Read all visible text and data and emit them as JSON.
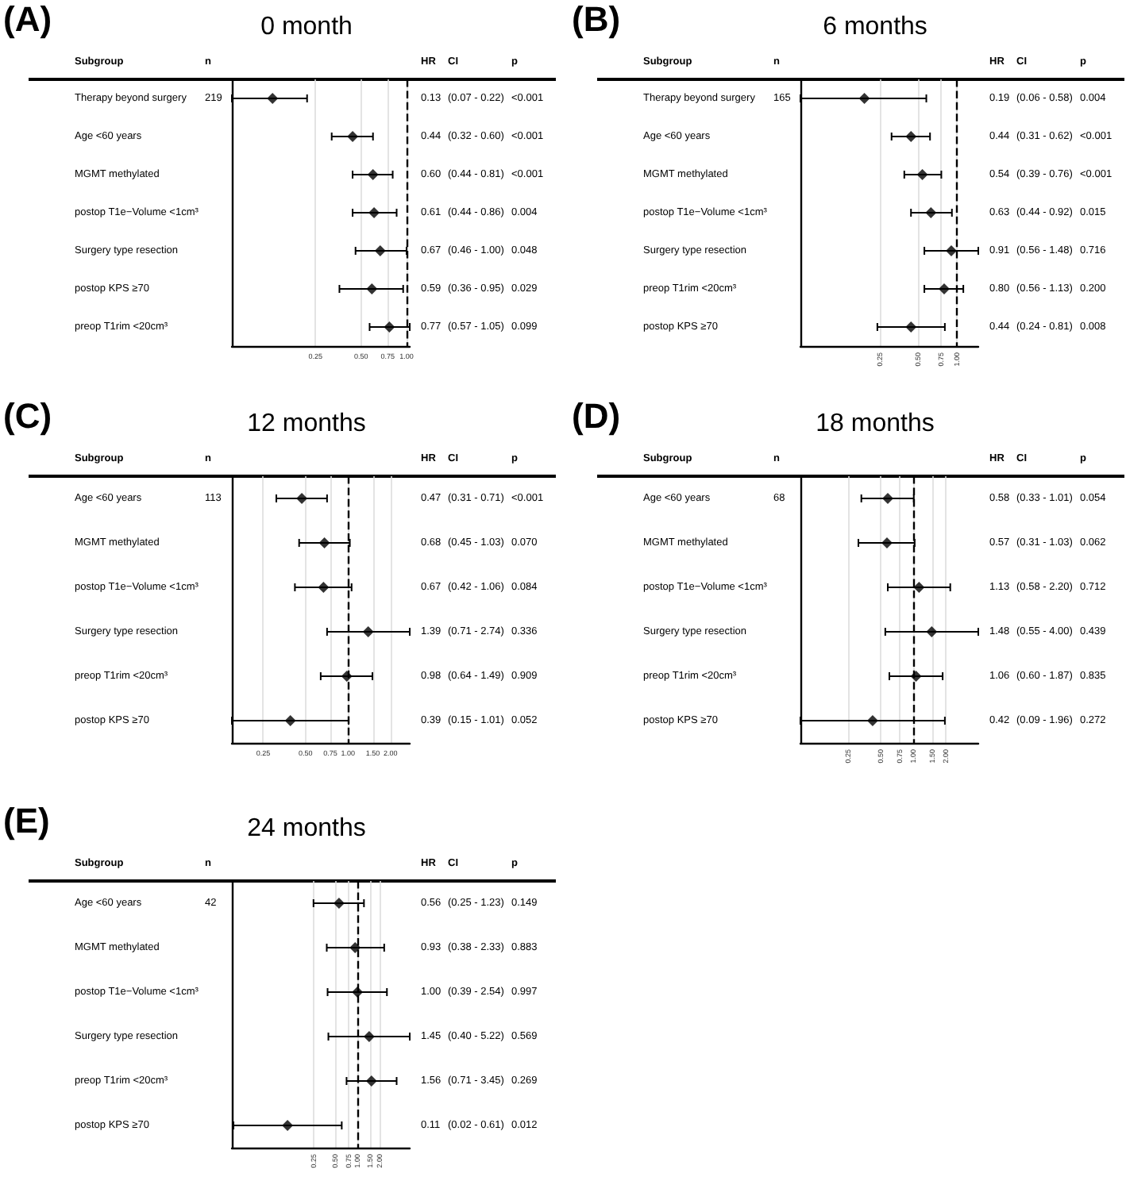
{
  "chart_data": [
    {
      "type": "scatter",
      "orientation": "horizontal",
      "title": "0 month",
      "color": "#000000",
      "marker": "diamond",
      "log": "x",
      "grid": "x",
      "categories": [
        "Therapy beyond surgery",
        "Age <60 years",
        "MGMT methylated",
        "postop T1e−Volume <1cm³",
        "Surgery type resection",
        "postop KPS ≥70",
        "preop T1rim <20cm³"
      ],
      "values": [
        0.13,
        0.44,
        0.6,
        0.61,
        0.67,
        0.59,
        0.77
      ],
      "errors": [
        [
          0.07,
          0.22
        ],
        [
          0.32,
          0.6
        ],
        [
          0.44,
          0.81
        ],
        [
          0.44,
          0.86
        ],
        [
          0.46,
          1.0
        ],
        [
          0.36,
          0.95
        ],
        [
          0.57,
          1.05
        ]
      ],
      "value_labels": [
        "0.13",
        "0.44",
        "0.60",
        "0.61",
        "0.67",
        "0.59",
        "0.77"
      ],
      "xlim": [
        0.07,
        1.05
      ],
      "xticks": [
        {
          "value": 0.25,
          "label": "0.25"
        },
        {
          "value": 0.5,
          "label": "0.50"
        },
        {
          "value": 0.75,
          "label": "0.75"
        },
        {
          "value": 1,
          "label": "1.00"
        }
      ],
      "ref_lines": [
        {
          "axis": "x",
          "value": 1,
          "line_style": "dashed",
          "color": "#000000"
        }
      ],
      "annotations": [
        "(A)",
        "Subgroup",
        "n",
        "HR",
        "CI",
        "p",
        "219",
        "(0.07 - 0.22)",
        "(0.32 - 0.60)",
        "(0.44 - 0.81)",
        "(0.44 - 0.86)",
        "(0.46 - 1.00)",
        "(0.36 - 0.95)",
        "(0.57 - 1.05)",
        "<0.001",
        "<0.001",
        "<0.001",
        "0.004",
        "0.048",
        "0.029",
        "0.099"
      ]
    },
    {
      "type": "scatter",
      "orientation": "horizontal",
      "title": "6 months",
      "color": "#000000",
      "marker": "diamond",
      "log": "x",
      "grid": "x",
      "categories": [
        "Therapy beyond surgery",
        "Age <60 years",
        "MGMT methylated",
        "postop T1e−Volume <1cm³",
        "Surgery type resection",
        "preop T1rim <20cm³",
        "postop KPS ≥70"
      ],
      "values": [
        0.19,
        0.44,
        0.54,
        0.63,
        0.91,
        0.8,
        0.44
      ],
      "errors": [
        [
          0.06,
          0.58
        ],
        [
          0.31,
          0.62
        ],
        [
          0.39,
          0.76
        ],
        [
          0.44,
          0.92
        ],
        [
          0.56,
          1.48
        ],
        [
          0.56,
          1.13
        ],
        [
          0.24,
          0.81
        ]
      ],
      "value_labels": [
        "0.19",
        "0.44",
        "0.54",
        "0.63",
        "0.91",
        "0.80",
        "0.44"
      ],
      "xlim": [
        0.06,
        1.48
      ],
      "xticks": [
        {
          "value": 0.25,
          "label": "0.25"
        },
        {
          "value": 0.5,
          "label": "0.50"
        },
        {
          "value": 0.75,
          "label": "0.75"
        },
        {
          "value": 1,
          "label": "1.00"
        }
      ],
      "ref_lines": [
        {
          "axis": "x",
          "value": 1,
          "line_style": "dashed",
          "color": "#000000"
        }
      ],
      "annotations": [
        "(B)",
        "Subgroup",
        "n",
        "HR",
        "CI",
        "p",
        "165",
        "(0.06 - 0.58)",
        "(0.31 - 0.62)",
        "(0.39 - 0.76)",
        "(0.44 - 0.92)",
        "(0.56 - 1.48)",
        "(0.56 - 1.13)",
        "(0.24 - 0.81)",
        "0.004",
        "<0.001",
        "<0.001",
        "0.015",
        "0.716",
        "0.200",
        "0.008"
      ]
    },
    {
      "type": "scatter",
      "orientation": "horizontal",
      "title": "12 months",
      "color": "#000000",
      "marker": "diamond",
      "log": "x",
      "grid": "x",
      "categories": [
        "Age <60 years",
        "MGMT methylated",
        "postop T1e−Volume <1cm³",
        "Surgery type resection",
        "preop T1rim <20cm³",
        "postop KPS ≥70"
      ],
      "values": [
        0.47,
        0.68,
        0.67,
        1.39,
        0.98,
        0.39
      ],
      "errors": [
        [
          0.31,
          0.71
        ],
        [
          0.45,
          1.03
        ],
        [
          0.42,
          1.06
        ],
        [
          0.71,
          2.74
        ],
        [
          0.64,
          1.49
        ],
        [
          0.15,
          1.01
        ]
      ],
      "value_labels": [
        "0.47",
        "0.68",
        "0.67",
        "1.39",
        "0.98",
        "0.39"
      ],
      "xlim": [
        0.15,
        2.74
      ],
      "xticks": [
        {
          "value": 0.25,
          "label": "0.25"
        },
        {
          "value": 0.5,
          "label": "0.50"
        },
        {
          "value": 0.75,
          "label": "0.75"
        },
        {
          "value": 1,
          "label": "1.00"
        },
        {
          "value": 1.5,
          "label": "1.50"
        },
        {
          "value": 2,
          "label": "2.00"
        }
      ],
      "ref_lines": [
        {
          "axis": "x",
          "value": 1,
          "line_style": "dashed",
          "color": "#000000"
        }
      ],
      "annotations": [
        "(C)",
        "Subgroup",
        "n",
        "HR",
        "CI",
        "p",
        "113",
        "(0.31 - 0.71)",
        "(0.45 - 1.03)",
        "(0.42 - 1.06)",
        "(0.71 - 2.74)",
        "(0.64 - 1.49)",
        "(0.15 - 1.01)",
        "<0.001",
        "0.070",
        "0.084",
        "0.336",
        "0.909",
        "0.052"
      ]
    },
    {
      "type": "scatter",
      "orientation": "horizontal",
      "title": "18 months",
      "color": "#000000",
      "marker": "diamond",
      "log": "x",
      "grid": "x",
      "categories": [
        "Age <60 years",
        "MGMT methylated",
        "postop T1e−Volume <1cm³",
        "Surgery type resection",
        "preop T1rim <20cm³",
        "postop KPS ≥70"
      ],
      "values": [
        0.58,
        0.57,
        1.13,
        1.48,
        1.06,
        0.42
      ],
      "errors": [
        [
          0.33,
          1.01
        ],
        [
          0.31,
          1.03
        ],
        [
          0.58,
          2.2
        ],
        [
          0.55,
          4.0
        ],
        [
          0.6,
          1.87
        ],
        [
          0.09,
          1.96
        ]
      ],
      "value_labels": [
        "0.58",
        "0.57",
        "1.13",
        "1.48",
        "1.06",
        "0.42"
      ],
      "xlim": [
        0.09,
        4.0
      ],
      "xticks": [
        {
          "value": 0.25,
          "label": "0.25"
        },
        {
          "value": 0.5,
          "label": "0.50"
        },
        {
          "value": 0.75,
          "label": "0.75"
        },
        {
          "value": 1,
          "label": "1.00"
        },
        {
          "value": 1.5,
          "label": "1.50"
        },
        {
          "value": 2,
          "label": "2.00"
        }
      ],
      "ref_lines": [
        {
          "axis": "x",
          "value": 1,
          "line_style": "dashed",
          "color": "#000000"
        }
      ],
      "annotations": [
        "(D)",
        "Subgroup",
        "n",
        "HR",
        "CI",
        "p",
        "68",
        "(0.33 - 1.01)",
        "(0.31 - 1.03)",
        "(0.58 - 2.20)",
        "(0.55 - 4.00)",
        "(0.60 - 1.87)",
        "(0.09 - 1.96)",
        "0.054",
        "0.062",
        "0.712",
        "0.439",
        "0.835",
        "0.272"
      ]
    },
    {
      "type": "scatter",
      "orientation": "horizontal",
      "title": "24 months",
      "color": "#000000",
      "marker": "diamond",
      "log": "x",
      "grid": "x",
      "categories": [
        "Age <60 years",
        "MGMT methylated",
        "postop T1e−Volume <1cm³",
        "Surgery type resection",
        "preop T1rim <20cm³",
        "postop KPS ≥70"
      ],
      "values": [
        0.56,
        0.93,
        1.0,
        1.45,
        1.56,
        0.11
      ],
      "errors": [
        [
          0.25,
          1.23
        ],
        [
          0.38,
          2.33
        ],
        [
          0.39,
          2.54
        ],
        [
          0.4,
          5.22
        ],
        [
          0.71,
          3.45
        ],
        [
          0.02,
          0.61
        ]
      ],
      "value_labels": [
        "0.56",
        "0.93",
        "1.00",
        "1.45",
        "1.56",
        "0.11"
      ],
      "xlim": [
        0.019,
        5.22
      ],
      "xticks": [
        {
          "value": 0.25,
          "label": "0.25"
        },
        {
          "value": 0.5,
          "label": "0.50"
        },
        {
          "value": 0.75,
          "label": "0.75"
        },
        {
          "value": 1,
          "label": "1.00"
        },
        {
          "value": 1.5,
          "label": "1.50"
        },
        {
          "value": 2,
          "label": "2.00"
        }
      ],
      "ref_lines": [
        {
          "axis": "x",
          "value": 1,
          "line_style": "dashed",
          "color": "#000000"
        }
      ],
      "annotations": [
        "(E)",
        "Subgroup",
        "n",
        "HR",
        "CI",
        "p",
        "42",
        "(0.25 - 1.23)",
        "(0.38 - 2.33)",
        "(0.39 - 2.54)",
        "(0.40 - 5.22)",
        "(0.71 - 3.45)",
        "(0.02 - 0.61)",
        "0.149",
        "0.883",
        "0.997",
        "0.569",
        "0.269",
        "0.012"
      ]
    }
  ]
}
